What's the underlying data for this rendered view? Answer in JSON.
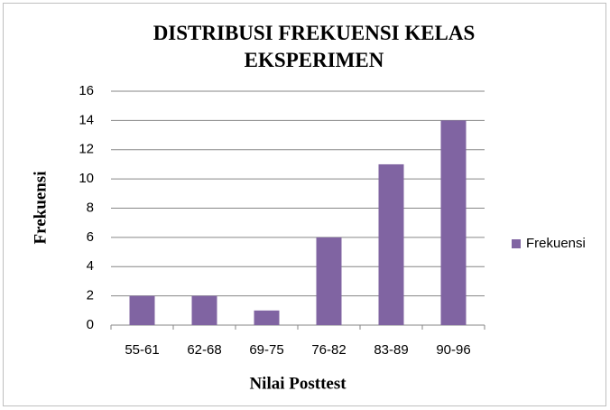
{
  "chart_data": {
    "type": "bar",
    "title": "DISTRIBUSI FREKUENSI KELAS EKSPERIMEN",
    "x_label": "Nilai Posttest",
    "y_label": "Frekuensi",
    "categories": [
      "55-61",
      "62-68",
      "69-75",
      "76-82",
      "83-89",
      "90-96"
    ],
    "series": [
      {
        "name": "Frekuensi",
        "color": "#8064a2",
        "values": [
          2,
          2,
          1,
          6,
          11,
          14
        ]
      }
    ],
    "ylim": [
      0,
      16
    ],
    "yticks": [
      0,
      2,
      4,
      6,
      8,
      10,
      12,
      14,
      16
    ],
    "grid": true,
    "legend": "right"
  }
}
